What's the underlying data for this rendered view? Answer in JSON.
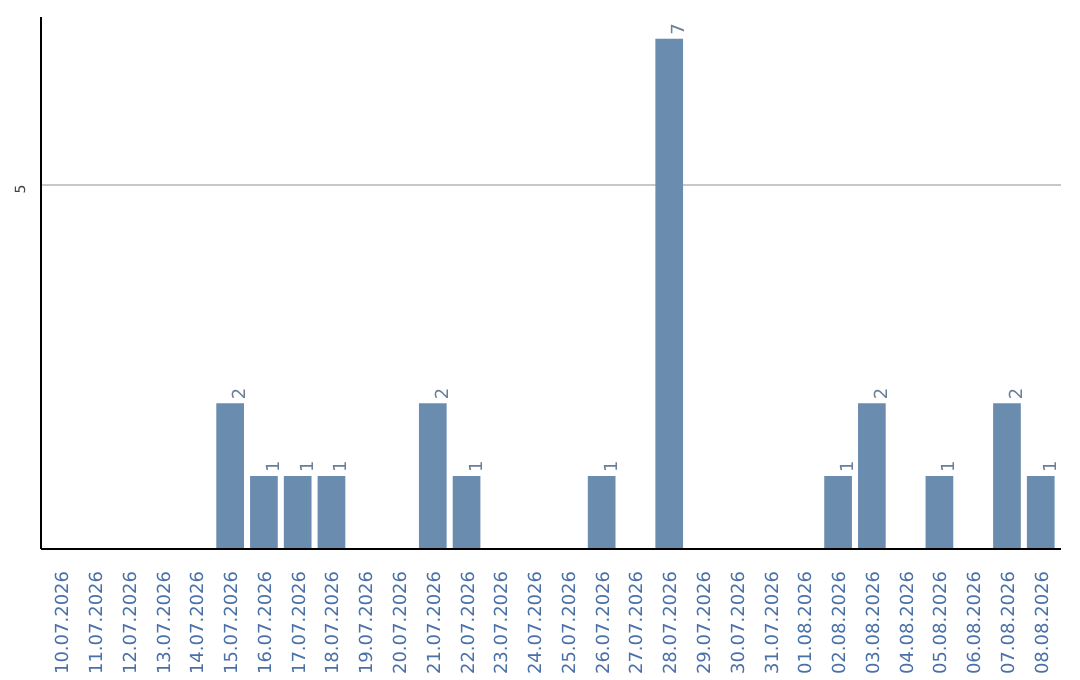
{
  "chart_data": {
    "type": "bar",
    "categories": [
      "10.07.2026",
      "11.07.2026",
      "12.07.2026",
      "13.07.2026",
      "14.07.2026",
      "15.07.2026",
      "16.07.2026",
      "17.07.2026",
      "18.07.2026",
      "19.07.2026",
      "20.07.2026",
      "21.07.2026",
      "22.07.2026",
      "23.07.2026",
      "24.07.2026",
      "25.07.2026",
      "26.07.2026",
      "27.07.2026",
      "28.07.2026",
      "29.07.2026",
      "30.07.2026",
      "31.07.2026",
      "01.08.2026",
      "02.08.2026",
      "03.08.2026",
      "04.08.2026",
      "05.08.2026",
      "06.08.2026",
      "07.08.2026",
      "08.08.2026"
    ],
    "values": [
      0,
      0,
      0,
      0,
      0,
      2,
      1,
      1,
      1,
      0,
      0,
      2,
      1,
      0,
      0,
      0,
      1,
      0,
      7,
      0,
      0,
      0,
      0,
      1,
      2,
      0,
      1,
      0,
      2,
      1
    ],
    "value_labels": [
      null,
      null,
      null,
      null,
      null,
      "2",
      "1",
      "1",
      "1",
      null,
      null,
      "2",
      "1",
      null,
      null,
      null,
      "1",
      null,
      "7",
      null,
      null,
      null,
      null,
      "1",
      "2",
      null,
      "1",
      null,
      "2",
      "1"
    ],
    "color": "#6a8caf",
    "ylim": [
      0,
      7.3
    ],
    "yticks": [
      5
    ],
    "grid": "y"
  }
}
